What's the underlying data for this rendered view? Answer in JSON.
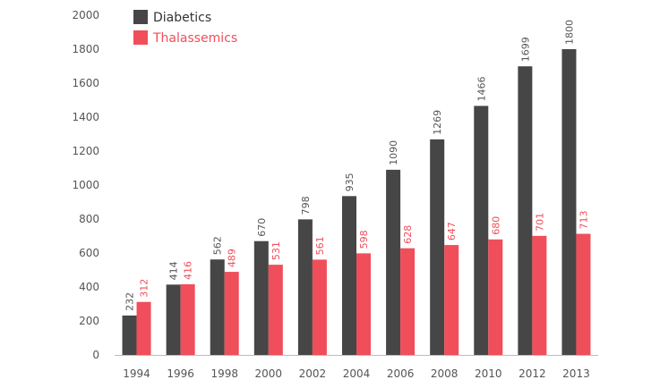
{
  "chart_data": {
    "type": "bar",
    "title": "",
    "xlabel": "",
    "ylabel": "",
    "ylim": [
      0,
      2000
    ],
    "yticks": [
      0,
      200,
      400,
      600,
      800,
      1000,
      1200,
      1400,
      1600,
      1800,
      2000
    ],
    "categories": [
      "1994",
      "1996",
      "1998",
      "2000",
      "2002",
      "2004",
      "2006",
      "2008",
      "2010",
      "2012",
      "2013"
    ],
    "series": [
      {
        "name": "Diabetics",
        "color": "#464646",
        "label_color": "#555555",
        "values": [
          232,
          414,
          562,
          670,
          798,
          935,
          1090,
          1269,
          1466,
          1699,
          1800
        ]
      },
      {
        "name": "Thalassemics",
        "color": "#f04e5a",
        "label_color": "#f04e5a",
        "values": [
          312,
          416,
          489,
          531,
          561,
          598,
          628,
          647,
          680,
          701,
          713
        ]
      }
    ],
    "legend_position": "top-left",
    "grid": false
  }
}
